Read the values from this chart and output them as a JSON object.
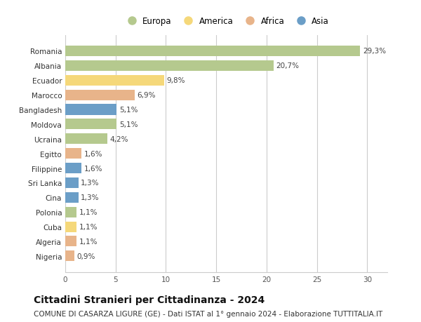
{
  "countries": [
    "Romania",
    "Albania",
    "Ecuador",
    "Marocco",
    "Bangladesh",
    "Moldova",
    "Ucraina",
    "Egitto",
    "Filippine",
    "Sri Lanka",
    "Cina",
    "Polonia",
    "Cuba",
    "Algeria",
    "Nigeria"
  ],
  "values": [
    29.3,
    20.7,
    9.8,
    6.9,
    5.1,
    5.1,
    4.2,
    1.6,
    1.6,
    1.3,
    1.3,
    1.1,
    1.1,
    1.1,
    0.9
  ],
  "labels": [
    "29,3%",
    "20,7%",
    "9,8%",
    "6,9%",
    "5,1%",
    "5,1%",
    "4,2%",
    "1,6%",
    "1,6%",
    "1,3%",
    "1,3%",
    "1,1%",
    "1,1%",
    "1,1%",
    "0,9%"
  ],
  "continents": [
    "Europa",
    "Europa",
    "America",
    "Africa",
    "Asia",
    "Europa",
    "Europa",
    "Africa",
    "Asia",
    "Asia",
    "Asia",
    "Europa",
    "America",
    "Africa",
    "Africa"
  ],
  "continent_colors": {
    "Europa": "#b5c98e",
    "America": "#f5d87a",
    "Africa": "#e8b48a",
    "Asia": "#6b9ec7"
  },
  "xlim": [
    0,
    32
  ],
  "xticks": [
    0,
    5,
    10,
    15,
    20,
    25,
    30
  ],
  "background_color": "#ffffff",
  "grid_color": "#cccccc",
  "title": "Cittadini Stranieri per Cittadinanza - 2024",
  "subtitle": "COMUNE DI CASARZA LIGURE (GE) - Dati ISTAT al 1° gennaio 2024 - Elaborazione TUTTITALIA.IT",
  "title_fontsize": 10,
  "subtitle_fontsize": 7.5,
  "label_fontsize": 7.5,
  "tick_fontsize": 7.5,
  "legend_fontsize": 8.5,
  "bar_height": 0.72,
  "legend_order": [
    "Europa",
    "America",
    "Africa",
    "Asia"
  ]
}
